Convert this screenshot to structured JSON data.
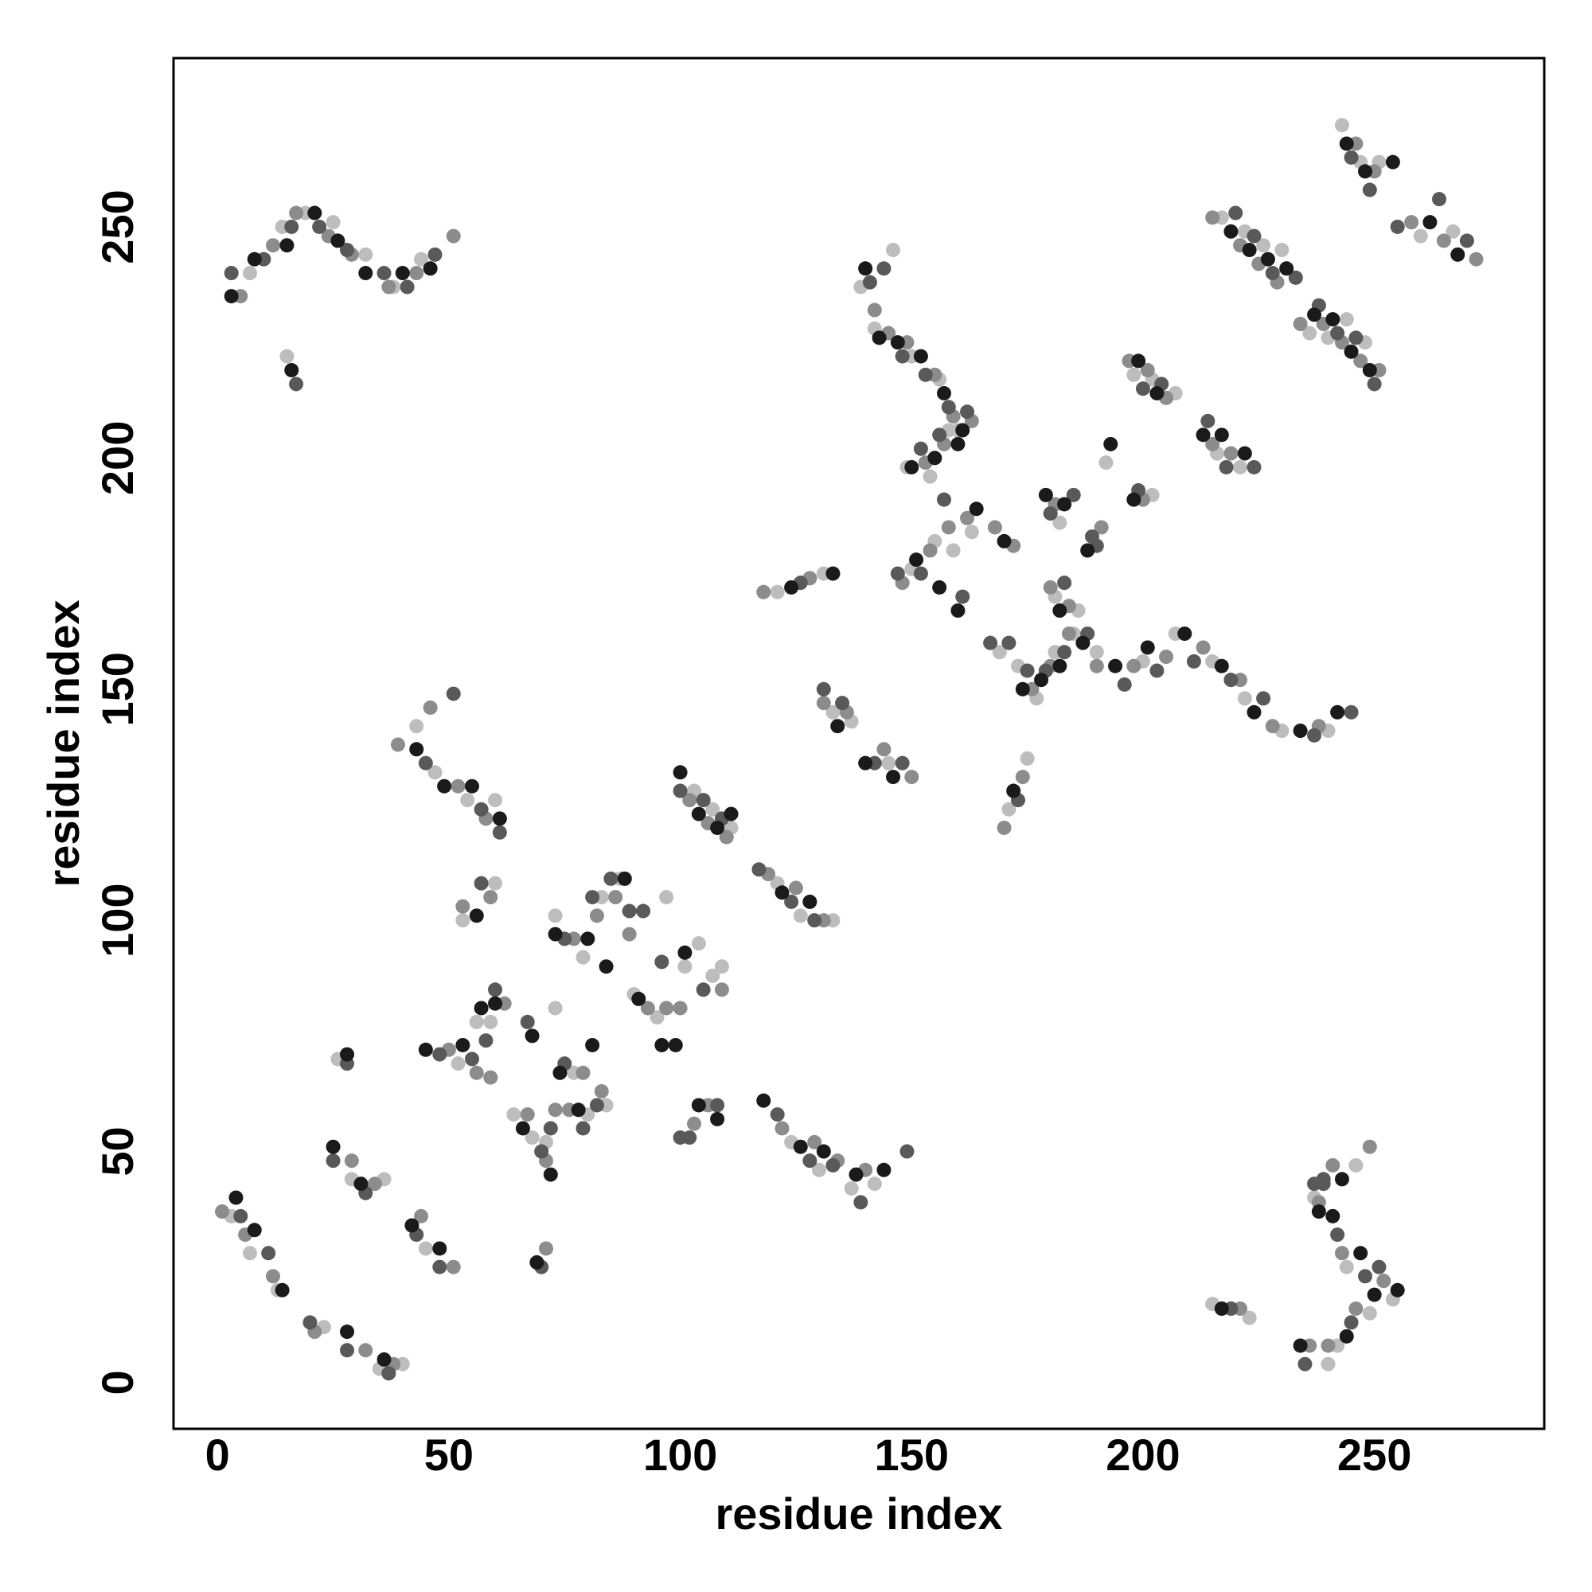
{
  "chart_data": {
    "type": "scatter",
    "xlabel": "residue index",
    "ylabel": "residue index",
    "xlim": [
      -9.5,
      286.7
    ],
    "ylim": [
      -10,
      286.5
    ],
    "xticks": [
      0,
      50,
      100,
      150,
      200,
      250
    ],
    "yticks": [
      0,
      50,
      100,
      150,
      200,
      250
    ],
    "series": [
      {
        "color": "#bdbdbd",
        "x": [
          7,
          14,
          19,
          25,
          32,
          38,
          44,
          15,
          3,
          7,
          13,
          23,
          35,
          40,
          29,
          36,
          45,
          26,
          43,
          47,
          54,
          60,
          53,
          60,
          52,
          56,
          59,
          64,
          68,
          71,
          73,
          77,
          80,
          84,
          73,
          79,
          83,
          87,
          90,
          95,
          97,
          101,
          104,
          107,
          109,
          103,
          107,
          111,
          121,
          126,
          133,
          124,
          130,
          137,
          142,
          121,
          131,
          133,
          137,
          145,
          139,
          142,
          146,
          150,
          156,
          160,
          149,
          154,
          158,
          150,
          155,
          159,
          163,
          169,
          173,
          177,
          181,
          185,
          190,
          200,
          207,
          215,
          222,
          230,
          240,
          171,
          175,
          182,
          181,
          186,
          192,
          198,
          202,
          207,
          202,
          216,
          221,
          217,
          222,
          226,
          230,
          236,
          240,
          244,
          248,
          243,
          247,
          251,
          260,
          267,
          215,
          223,
          237,
          240,
          244,
          246,
          249,
          254,
          242
        ],
        "values": [
          240,
          250,
          253,
          251,
          244,
          237,
          243,
          222,
          36,
          28,
          20,
          12,
          3,
          4,
          44,
          44,
          29,
          70,
          142,
          132,
          126,
          126,
          100,
          108,
          69,
          78,
          78,
          58,
          53,
          52,
          81,
          67,
          58,
          60,
          101,
          92,
          105,
          109,
          84,
          79,
          105,
          90,
          95,
          88,
          90,
          128,
          124,
          120,
          108,
          101,
          100,
          52,
          46,
          42,
          43,
          171,
          175,
          145,
          143,
          134,
          237,
          228,
          245,
          222,
          217,
          206,
          198,
          196,
          206,
          176,
          182,
          180,
          184,
          158,
          155,
          148,
          158,
          162,
          158,
          156,
          162,
          156,
          148,
          141,
          141,
          124,
          135,
          186,
          170,
          167,
          199,
          218,
          217,
          214,
          192,
          201,
          198,
          252,
          249,
          246,
          245,
          227,
          226,
          230,
          225,
          272,
          264,
          264,
          248,
          249,
          17,
          14,
          40,
          4,
          25,
          47,
          15,
          18,
          8
        ]
      },
      {
        "color": "#8c8c8c",
        "x": [
          5,
          12,
          17,
          24,
          29,
          37,
          43,
          51,
          1,
          6,
          12,
          21,
          32,
          38,
          29,
          34,
          44,
          51,
          39,
          46,
          52,
          58,
          53,
          59,
          50,
          56,
          59,
          62,
          67,
          71,
          73,
          76,
          79,
          83,
          71,
          77,
          82,
          86,
          89,
          93,
          97,
          100,
          103,
          106,
          109,
          102,
          106,
          110,
          119,
          125,
          131,
          122,
          129,
          134,
          140,
          118,
          128,
          131,
          136,
          144,
          150,
          142,
          145,
          149,
          155,
          159,
          163,
          153,
          157,
          148,
          154,
          158,
          162,
          168,
          172,
          176,
          180,
          184,
          190,
          198,
          205,
          213,
          221,
          228,
          238,
          170,
          174,
          181,
          180,
          184,
          191,
          197,
          201,
          205,
          200,
          215,
          219,
          215,
          221,
          225,
          229,
          234,
          239,
          243,
          247,
          251,
          246,
          250,
          258,
          265,
          272,
          221,
          236,
          240,
          243,
          246,
          249,
          252,
          241,
          238
        ],
        "values": [
          235,
          246,
          253,
          248,
          244,
          237,
          240,
          248,
          37,
          32,
          23,
          11,
          7,
          4,
          48,
          43,
          36,
          25,
          138,
          146,
          129,
          122,
          103,
          105,
          72,
          67,
          66,
          82,
          58,
          48,
          59,
          59,
          67,
          63,
          29,
          96,
          101,
          105,
          97,
          81,
          81,
          81,
          56,
          60,
          85,
          126,
          121,
          118,
          110,
          107,
          100,
          55,
          52,
          48,
          46,
          171,
          174,
          147,
          145,
          137,
          131,
          232,
          227,
          225,
          218,
          209,
          208,
          199,
          203,
          173,
          180,
          185,
          187,
          185,
          181,
          150,
          155,
          162,
          155,
          155,
          157,
          159,
          152,
          142,
          142,
          120,
          131,
          190,
          172,
          168,
          185,
          221,
          219,
          213,
          191,
          203,
          201,
          252,
          246,
          242,
          238,
          229,
          229,
          225,
          221,
          219,
          268,
          262,
          251,
          247,
          243,
          16,
          8,
          8,
          28,
          16,
          51,
          22,
          47,
          39
        ]
      },
      {
        "color": "#595959",
        "x": [
          3,
          10,
          16,
          22,
          28,
          36,
          41,
          47,
          17,
          5,
          11,
          20,
          28,
          37,
          25,
          32,
          43,
          48,
          28,
          45,
          51,
          57,
          61,
          57,
          48,
          55,
          58,
          60,
          67,
          70,
          72,
          75,
          79,
          82,
          70,
          75,
          81,
          85,
          89,
          92,
          96,
          100,
          102,
          105,
          108,
          100,
          105,
          109,
          117,
          124,
          129,
          121,
          128,
          133,
          139,
          149,
          126,
          131,
          135,
          142,
          148,
          141,
          144,
          148,
          153,
          158,
          162,
          152,
          156,
          147,
          152,
          157,
          161,
          167,
          171,
          175,
          179,
          183,
          188,
          196,
          203,
          211,
          219,
          226,
          237,
          245,
          173,
          180,
          185,
          183,
          189,
          190,
          200,
          204,
          199,
          214,
          218,
          224,
          220,
          224,
          228,
          233,
          238,
          242,
          246,
          250,
          245,
          249,
          255,
          264,
          270,
          219,
          235,
          239,
          242,
          245,
          248,
          251,
          239,
          237
        ],
        "values": [
          240,
          243,
          250,
          250,
          245,
          240,
          237,
          244,
          216,
          36,
          28,
          13,
          7,
          2,
          48,
          41,
          32,
          25,
          69,
          134,
          149,
          124,
          119,
          108,
          71,
          70,
          74,
          85,
          78,
          50,
          55,
          69,
          55,
          60,
          25,
          96,
          105,
          109,
          102,
          102,
          91,
          53,
          53,
          85,
          60,
          128,
          126,
          122,
          111,
          104,
          100,
          58,
          48,
          47,
          39,
          50,
          173,
          150,
          147,
          134,
          134,
          238,
          241,
          222,
          218,
          211,
          210,
          202,
          205,
          175,
          175,
          191,
          170,
          160,
          160,
          154,
          154,
          158,
          162,
          151,
          154,
          156,
          152,
          148,
          140,
          145,
          126,
          188,
          192,
          173,
          183,
          181,
          215,
          216,
          193,
          208,
          198,
          198,
          253,
          248,
          240,
          239,
          233,
          227,
          226,
          216,
          265,
          258,
          250,
          256,
          247,
          16,
          4,
          44,
          32,
          13,
          23,
          25,
          43,
          43
        ]
      },
      {
        "color": "#1a1a1a",
        "x": [
          3,
          8,
          15,
          21,
          26,
          32,
          40,
          46,
          16,
          4,
          8,
          14,
          28,
          36,
          25,
          31,
          42,
          48,
          28,
          43,
          49,
          55,
          61,
          56,
          45,
          53,
          57,
          60,
          66,
          68,
          72,
          74,
          78,
          81,
          69,
          73,
          80,
          84,
          88,
          91,
          96,
          99,
          101,
          104,
          108,
          100,
          104,
          108,
          111,
          122,
          128,
          118,
          126,
          131,
          138,
          144,
          124,
          133,
          134,
          140,
          146,
          140,
          143,
          147,
          152,
          157,
          161,
          150,
          155,
          160,
          151,
          156,
          160,
          164,
          170,
          174,
          178,
          182,
          187,
          194,
          201,
          209,
          217,
          224,
          234,
          242,
          172,
          179,
          183,
          182,
          188,
          193,
          199,
          203,
          198,
          213,
          217,
          222,
          219,
          223,
          227,
          231,
          237,
          241,
          245,
          249,
          244,
          248,
          254,
          262,
          268,
          217,
          234,
          238,
          241,
          244,
          247,
          250,
          255,
          243
        ],
        "values": [
          235,
          243,
          246,
          253,
          247,
          240,
          240,
          241,
          219,
          40,
          33,
          20,
          11,
          5,
          51,
          43,
          34,
          29,
          71,
          137,
          129,
          129,
          122,
          101,
          72,
          73,
          81,
          82,
          55,
          75,
          45,
          67,
          59,
          73,
          26,
          97,
          96,
          90,
          109,
          83,
          73,
          73,
          93,
          60,
          57,
          132,
          123,
          120,
          123,
          106,
          104,
          61,
          51,
          50,
          45,
          46,
          172,
          175,
          142,
          134,
          131,
          241,
          226,
          225,
          222,
          214,
          206,
          198,
          200,
          203,
          178,
          172,
          167,
          189,
          182,
          150,
          152,
          155,
          160,
          155,
          159,
          162,
          155,
          145,
          141,
          145,
          128,
          192,
          190,
          167,
          180,
          203,
          221,
          214,
          191,
          205,
          205,
          201,
          249,
          245,
          243,
          241,
          231,
          230,
          223,
          219,
          268,
          262,
          264,
          251,
          244,
          16,
          8,
          37,
          36,
          10,
          28,
          19,
          20,
          44
        ]
      }
    ]
  }
}
